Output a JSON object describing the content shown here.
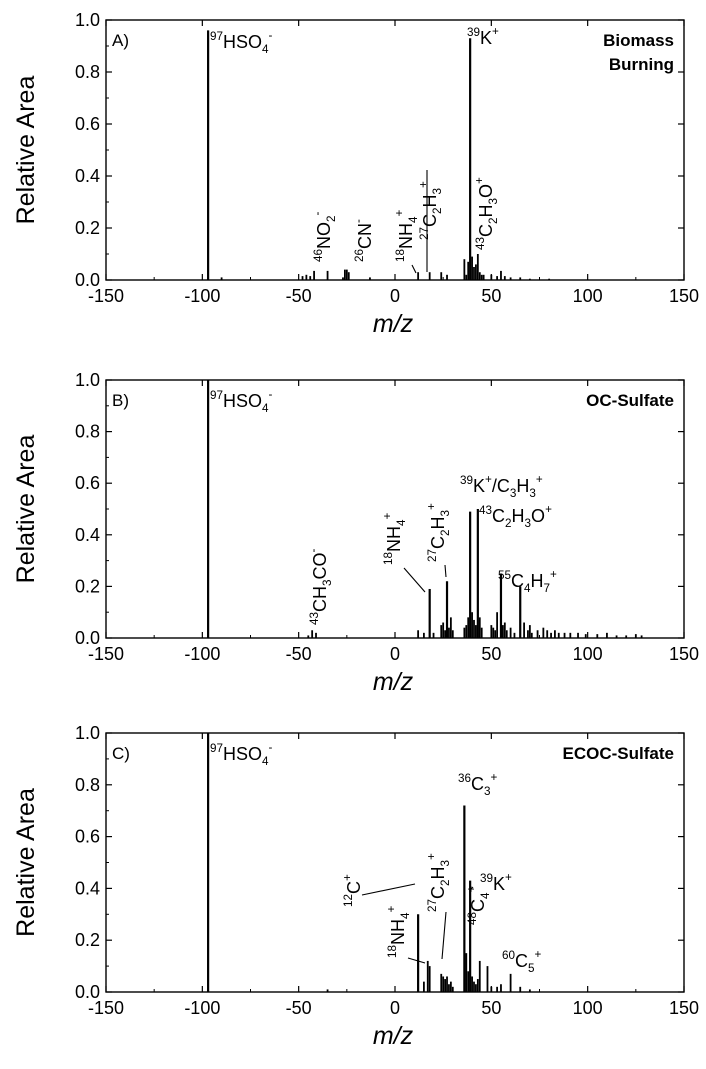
{
  "chart_data": [
    {
      "type": "bar",
      "panel_label": "A)",
      "title": "Biomass Burning",
      "title_lines": [
        "Biomass",
        "Burning"
      ],
      "xlabel": "m/z",
      "ylabel": "Relative Area",
      "xlim": [
        -150,
        150
      ],
      "ylim": [
        0,
        1.0
      ],
      "xticks": [
        "-150",
        "-100",
        "-50",
        "0",
        "50",
        "100",
        "150"
      ],
      "yticks": [
        "0.0",
        "0.2",
        "0.4",
        "0.6",
        "0.8",
        "1.0"
      ],
      "series": [
        {
          "x": [
            -97,
            -90,
            -48,
            -46,
            -44,
            -42,
            -35,
            -27,
            -26,
            -25,
            -24,
            -13,
            12,
            18,
            24,
            27,
            36,
            37,
            38,
            39,
            40,
            41,
            42,
            43,
            44,
            45,
            46,
            50,
            53,
            55,
            57,
            60,
            65,
            70,
            80
          ],
          "values": [
            0.96,
            0.01,
            0.015,
            0.02,
            0.015,
            0.035,
            0.035,
            0.01,
            0.04,
            0.04,
            0.03,
            0.01,
            0.03,
            0.03,
            0.03,
            0.02,
            0.08,
            0.02,
            0.07,
            0.93,
            0.09,
            0.05,
            0.06,
            0.1,
            0.03,
            0.02,
            0.02,
            0.02,
            0.015,
            0.035,
            0.015,
            0.01,
            0.01,
            0.005,
            0.005
          ]
        }
      ],
      "annotations": [
        {
          "mass": "97",
          "species": "HSO",
          "sub": "4",
          "charge": "-",
          "x": -97,
          "y": 0.96
        },
        {
          "mass": "39",
          "species": "K",
          "sub": "",
          "charge": "+",
          "x": 39,
          "y": 0.93
        },
        {
          "mass": "46",
          "species": "NO",
          "sub": "2",
          "charge": "-",
          "x": -46,
          "y": 0.02
        },
        {
          "mass": "26",
          "species": "CN",
          "sub": "",
          "charge": "-",
          "x": -26,
          "y": 0.04
        },
        {
          "mass": "18",
          "species": "NH",
          "sub": "4",
          "charge": "+",
          "x": 18,
          "y": 0.03
        },
        {
          "mass": "27",
          "species": "C",
          "sub": "2",
          "species2": "H",
          "sub2": "3",
          "charge": "+",
          "x": 27,
          "y": 0.02
        },
        {
          "mass": "43",
          "species": "C",
          "sub": "2",
          "species2": "H",
          "sub2": "3",
          "species3": "O",
          "charge": "+",
          "x": 43,
          "y": 0.1
        }
      ]
    },
    {
      "type": "bar",
      "panel_label": "B)",
      "title": "OC-Sulfate",
      "title_lines": [
        "OC-Sulfate"
      ],
      "xlabel": "m/z",
      "ylabel": "Relative Area",
      "xlim": [
        -150,
        150
      ],
      "ylim": [
        0,
        1.0
      ],
      "xticks": [
        "-150",
        "-100",
        "-50",
        "0",
        "50",
        "100",
        "150"
      ],
      "yticks": [
        "0.0",
        "0.2",
        "0.4",
        "0.6",
        "0.8",
        "1.0"
      ],
      "series": [
        {
          "x": [
            -97,
            -45,
            -43,
            -41,
            12,
            15,
            18,
            20,
            24,
            25,
            26,
            27,
            28,
            29,
            30,
            36,
            37,
            38,
            39,
            40,
            41,
            42,
            43,
            44,
            45,
            50,
            51,
            52,
            53,
            55,
            56,
            57,
            58,
            60,
            62,
            65,
            67,
            69,
            70,
            71,
            74,
            77,
            79,
            81,
            83,
            85,
            88,
            91,
            95,
            99,
            105,
            110,
            115,
            120,
            125,
            128
          ],
          "values": [
            1.0,
            0.01,
            0.03,
            0.02,
            0.03,
            0.02,
            0.19,
            0.02,
            0.05,
            0.06,
            0.03,
            0.22,
            0.04,
            0.08,
            0.03,
            0.04,
            0.05,
            0.08,
            0.49,
            0.1,
            0.07,
            0.05,
            0.5,
            0.08,
            0.04,
            0.05,
            0.04,
            0.03,
            0.1,
            0.25,
            0.05,
            0.06,
            0.03,
            0.04,
            0.02,
            0.2,
            0.06,
            0.03,
            0.05,
            0.02,
            0.03,
            0.04,
            0.03,
            0.02,
            0.03,
            0.02,
            0.02,
            0.02,
            0.02,
            0.015,
            0.015,
            0.02,
            0.01,
            0.01,
            0.015,
            0.01
          ]
        }
      ],
      "annotations": [
        {
          "mass": "97",
          "species": "HSO",
          "sub": "4",
          "charge": "-",
          "x": -97,
          "y": 1.0
        },
        {
          "mass": "43",
          "species": "CH",
          "sub": "3",
          "species2": "CO",
          "sub2": "",
          "charge": "-",
          "x": -43,
          "y": 0.03
        },
        {
          "mass": "18",
          "species": "NH",
          "sub": "4",
          "charge": "+",
          "x": 18,
          "y": 0.19
        },
        {
          "mass": "27",
          "species": "C",
          "sub": "2",
          "species2": "H",
          "sub2": "3",
          "charge": "+",
          "x": 27,
          "y": 0.22
        },
        {
          "mass": "39",
          "species": "K",
          "sub": "",
          "charge": "+",
          "extra": "/C3H3+",
          "x": 39,
          "y": 0.49
        },
        {
          "mass": "43",
          "species": "C",
          "sub": "2",
          "species2": "H",
          "sub2": "3",
          "species3": "O",
          "charge": "+",
          "x": 43,
          "y": 0.5
        },
        {
          "mass": "55",
          "species": "C",
          "sub": "4",
          "species2": "H",
          "sub2": "7",
          "charge": "+",
          "x": 55,
          "y": 0.25
        }
      ]
    },
    {
      "type": "bar",
      "panel_label": "C)",
      "title": "ECOC-Sulfate",
      "title_lines": [
        "ECOC-Sulfate"
      ],
      "xlabel": "m/z",
      "ylabel": "Relative Area",
      "xlim": [
        -150,
        150
      ],
      "ylim": [
        0,
        1.0
      ],
      "xticks": [
        "-150",
        "-100",
        "-50",
        "0",
        "50",
        "100",
        "150"
      ],
      "yticks": [
        "0.0",
        "0.2",
        "0.4",
        "0.6",
        "0.8",
        "1.0"
      ],
      "series": [
        {
          "x": [
            -97,
            -35,
            12,
            15,
            17,
            18,
            24,
            25,
            26,
            27,
            28,
            29,
            30,
            36,
            37,
            38,
            39,
            40,
            41,
            42,
            43,
            44,
            48,
            50,
            53,
            55,
            60,
            65,
            70
          ],
          "values": [
            1.0,
            0.01,
            0.3,
            0.04,
            0.12,
            0.1,
            0.07,
            0.06,
            0.05,
            0.06,
            0.03,
            0.04,
            0.02,
            0.72,
            0.15,
            0.08,
            0.43,
            0.06,
            0.04,
            0.03,
            0.05,
            0.12,
            0.1,
            0.02,
            0.02,
            0.03,
            0.07,
            0.02,
            0.01
          ]
        }
      ],
      "annotations": [
        {
          "mass": "97",
          "species": "HSO",
          "sub": "4",
          "charge": "-",
          "x": -97,
          "y": 1.0
        },
        {
          "mass": "12",
          "species": "C",
          "sub": "",
          "charge": "+",
          "x": 12,
          "y": 0.3
        },
        {
          "mass": "18",
          "species": "NH",
          "sub": "4",
          "charge": "+",
          "x": 18,
          "y": 0.12
        },
        {
          "mass": "27",
          "species": "C",
          "sub": "2",
          "species2": "H",
          "sub2": "3",
          "charge": "+",
          "x": 27,
          "y": 0.06
        },
        {
          "mass": "36",
          "species": "C",
          "sub": "3",
          "charge": "+",
          "x": 36,
          "y": 0.72
        },
        {
          "mass": "39",
          "species": "K",
          "sub": "",
          "charge": "+",
          "x": 39,
          "y": 0.43
        },
        {
          "mass": "48",
          "species": "C",
          "sub": "4",
          "charge": "+",
          "x": 48,
          "y": 0.12
        },
        {
          "mass": "60",
          "species": "C",
          "sub": "5",
          "charge": "+",
          "x": 60,
          "y": 0.07
        }
      ]
    }
  ]
}
